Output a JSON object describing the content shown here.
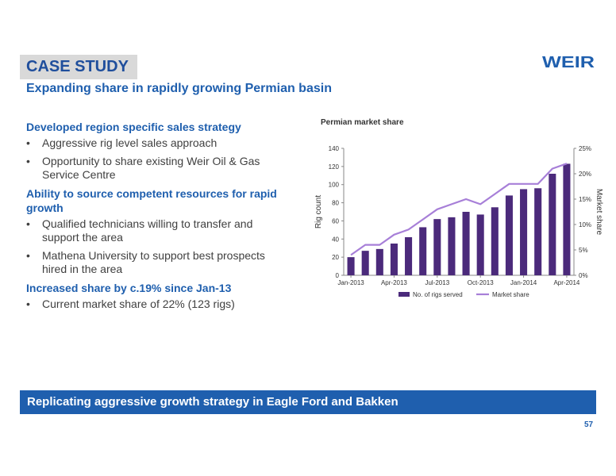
{
  "header": {
    "label": "CASE STUDY",
    "subtitle": "Expanding share in rapidly growing Permian basin",
    "logo_text": "WEIR"
  },
  "sections": [
    {
      "heading": "Developed region specific sales strategy",
      "bullets": [
        "Aggressive rig level sales approach",
        "Opportunity to share existing Weir Oil & Gas Service Centre"
      ]
    },
    {
      "heading": "Ability to source competent resources for rapid growth",
      "bullets": [
        "Qualified technicians willing to transfer and support the area",
        "Mathena University to support best prospects hired in the area"
      ]
    },
    {
      "heading": "Increased share by c.19% since Jan-13",
      "bullets": [
        "Current market share of 22% (123 rigs)"
      ]
    }
  ],
  "chart_data": {
    "type": "bar",
    "title": "Permian market share",
    "ylabel": "Rig count",
    "y2label": "Market share",
    "ylim": [
      0,
      140
    ],
    "y2lim": [
      0,
      25
    ],
    "yticks": [
      "0",
      "20",
      "40",
      "60",
      "80",
      "100",
      "120",
      "140"
    ],
    "y2ticks": [
      "0%",
      "5%",
      "10%",
      "15%",
      "20%",
      "25%"
    ],
    "xtick_labels": [
      "Jan-2013",
      "Apr-2013",
      "Jul-2013",
      "Oct-2013",
      "Jan-2014",
      "Apr-2014"
    ],
    "categories": [
      "Jan-2013",
      "Feb-2013",
      "Mar-2013",
      "Apr-2013",
      "May-2013",
      "Jun-2013",
      "Jul-2013",
      "Aug-2013",
      "Sep-2013",
      "Oct-2013",
      "Nov-2013",
      "Dec-2013",
      "Jan-2014",
      "Feb-2014",
      "Mar-2014",
      "Apr-2014"
    ],
    "series": [
      {
        "name": "No. of rigs served",
        "kind": "bar",
        "axis": "left",
        "color": "#4b2a7b",
        "values": [
          20,
          27,
          29,
          35,
          42,
          53,
          62,
          64,
          70,
          67,
          75,
          88,
          95,
          96,
          112,
          123
        ]
      },
      {
        "name": "Market share",
        "kind": "line",
        "axis": "right",
        "color": "#a77fd8",
        "values": [
          4,
          6,
          6,
          8,
          9,
          11,
          13,
          14,
          15,
          14,
          16,
          18,
          18,
          18,
          21,
          22
        ]
      }
    ],
    "legend": "bottom"
  },
  "banner": {
    "text": "Replicating aggressive growth strategy in Eagle Ford and Bakken"
  },
  "page_number": "57"
}
